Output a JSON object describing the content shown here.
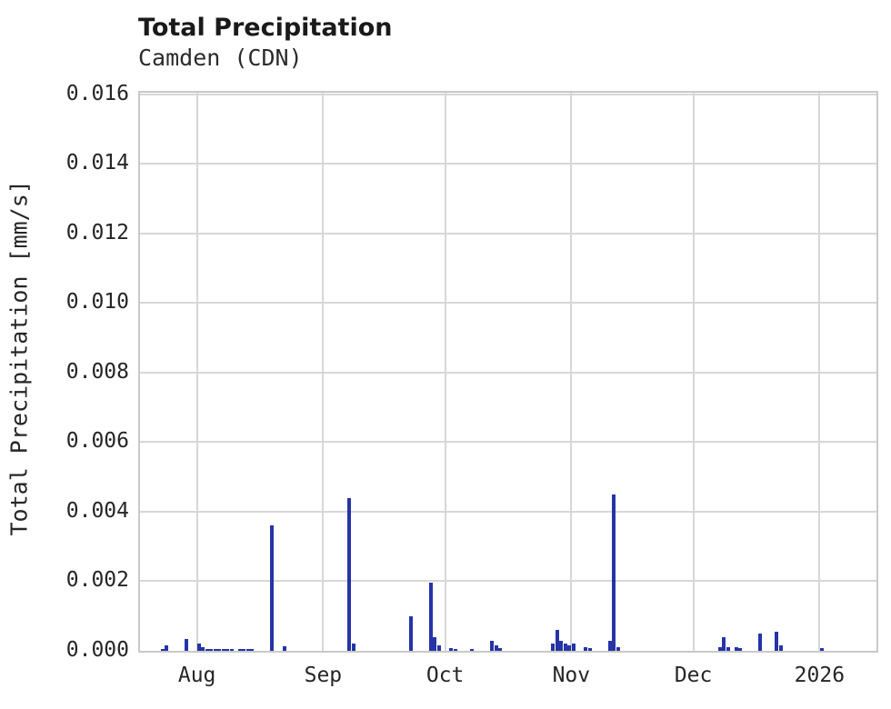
{
  "chart_data": {
    "type": "bar",
    "title": "Total Precipitation",
    "subtitle": "Camden (CDN)",
    "ylabel": "Total Precipitation [mm/s]",
    "xlabel": "",
    "x_domain": [
      "2025-07-18",
      "2026-01-15"
    ],
    "ylim": [
      0,
      0.016052
    ],
    "grid": true,
    "legend": false,
    "bar_color": "#2634a6",
    "grid_color": "#d7d7d7",
    "frame_color": "#c9c9c9",
    "text_color": "#262626",
    "x_ticks": [
      {
        "label": "Aug",
        "date": "2025-08-01"
      },
      {
        "label": "Sep",
        "date": "2025-09-01"
      },
      {
        "label": "Oct",
        "date": "2025-10-01"
      },
      {
        "label": "Nov",
        "date": "2025-11-01"
      },
      {
        "label": "Dec",
        "date": "2025-12-01"
      },
      {
        "label": "2026",
        "date": "2026-01-01"
      }
    ],
    "y_ticks": [
      {
        "label": "0.000",
        "value": 0.0
      },
      {
        "label": "0.002",
        "value": 0.002
      },
      {
        "label": "0.004",
        "value": 0.004
      },
      {
        "label": "0.006",
        "value": 0.006
      },
      {
        "label": "0.008",
        "value": 0.008
      },
      {
        "label": "0.010",
        "value": 0.01
      },
      {
        "label": "0.012",
        "value": 0.012
      },
      {
        "label": "0.014",
        "value": 0.014
      },
      {
        "label": "0.016",
        "value": 0.016
      }
    ],
    "series": [
      {
        "name": "Total Precipitation [mm/s]",
        "points": [
          {
            "date": "2025-07-23",
            "value": 5e-05
          },
          {
            "date": "2025-07-24",
            "value": 0.00015
          },
          {
            "date": "2025-07-29",
            "value": 0.00035
          },
          {
            "date": "2025-08-01",
            "value": 0.0002
          },
          {
            "date": "2025-08-02",
            "value": 0.0001
          },
          {
            "date": "2025-08-03",
            "value": 5e-05
          },
          {
            "date": "2025-08-04",
            "value": 5e-05
          },
          {
            "date": "2025-08-05",
            "value": 6e-05
          },
          {
            "date": "2025-08-06",
            "value": 5e-05
          },
          {
            "date": "2025-08-07",
            "value": 5e-05
          },
          {
            "date": "2025-08-08",
            "value": 6e-05
          },
          {
            "date": "2025-08-09",
            "value": 4e-05
          },
          {
            "date": "2025-08-11",
            "value": 5e-05
          },
          {
            "date": "2025-08-12",
            "value": 5e-05
          },
          {
            "date": "2025-08-13",
            "value": 4e-05
          },
          {
            "date": "2025-08-14",
            "value": 5e-05
          },
          {
            "date": "2025-08-19",
            "value": 0.0036
          },
          {
            "date": "2025-08-22",
            "value": 0.00013
          },
          {
            "date": "2025-09-07",
            "value": 0.0044
          },
          {
            "date": "2025-09-08",
            "value": 0.0002
          },
          {
            "date": "2025-09-22",
            "value": 0.001
          },
          {
            "date": "2025-09-27",
            "value": 0.00195
          },
          {
            "date": "2025-09-28",
            "value": 0.0004
          },
          {
            "date": "2025-09-29",
            "value": 0.00015
          },
          {
            "date": "2025-10-02",
            "value": 8e-05
          },
          {
            "date": "2025-10-03",
            "value": 6e-05
          },
          {
            "date": "2025-10-07",
            "value": 5e-05
          },
          {
            "date": "2025-10-12",
            "value": 0.0003
          },
          {
            "date": "2025-10-13",
            "value": 0.00015
          },
          {
            "date": "2025-10-14",
            "value": 8e-05
          },
          {
            "date": "2025-10-27",
            "value": 0.0002
          },
          {
            "date": "2025-10-28",
            "value": 0.0006
          },
          {
            "date": "2025-10-29",
            "value": 0.0003
          },
          {
            "date": "2025-10-30",
            "value": 0.0002
          },
          {
            "date": "2025-10-31",
            "value": 0.00015
          },
          {
            "date": "2025-11-01",
            "value": 0.0002
          },
          {
            "date": "2025-11-04",
            "value": 0.0001
          },
          {
            "date": "2025-11-05",
            "value": 8e-05
          },
          {
            "date": "2025-11-10",
            "value": 0.0003
          },
          {
            "date": "2025-11-11",
            "value": 0.0045
          },
          {
            "date": "2025-11-12",
            "value": 0.0001
          },
          {
            "date": "2025-12-07",
            "value": 0.0001
          },
          {
            "date": "2025-12-08",
            "value": 0.0004
          },
          {
            "date": "2025-12-09",
            "value": 0.0001
          },
          {
            "date": "2025-12-11",
            "value": 0.0001
          },
          {
            "date": "2025-12-12",
            "value": 8e-05
          },
          {
            "date": "2025-12-17",
            "value": 0.0005
          },
          {
            "date": "2025-12-21",
            "value": 0.00055
          },
          {
            "date": "2025-12-22",
            "value": 0.00015
          },
          {
            "date": "2026-01-01",
            "value": 8e-05
          }
        ]
      }
    ]
  }
}
